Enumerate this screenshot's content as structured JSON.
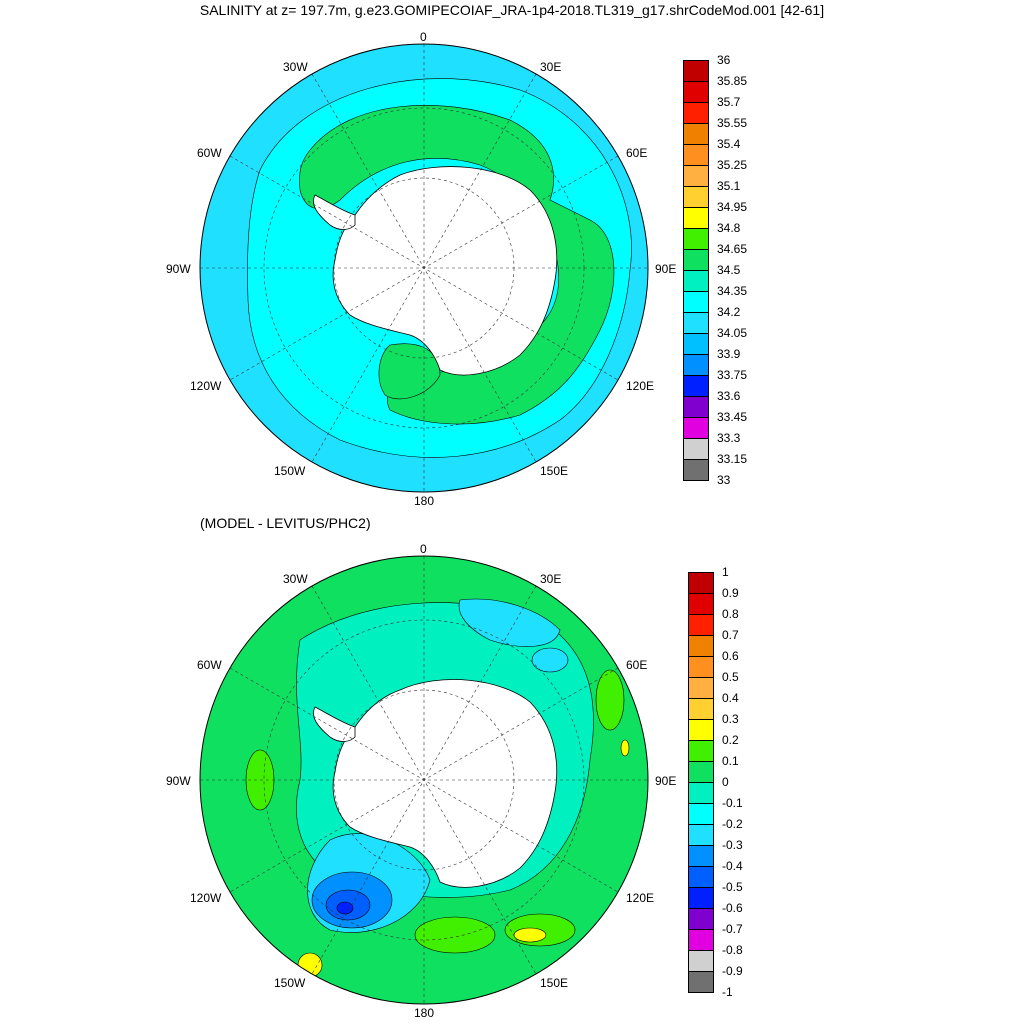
{
  "title": "SALINITY at z= 197.7m, g.e23.GOMIPECOIAF_JRA-1p4-2018.TL319_g17.shrCodeMod.001 [42-61]",
  "subtitle": "(MODEL - LEVITUS/PHC2)",
  "longitude_labels": [
    "0",
    "30E",
    "60E",
    "90E",
    "120E",
    "150E",
    "180",
    "150W",
    "120W",
    "90W",
    "60W",
    "30W"
  ],
  "top_panel": {
    "colorbar_labels": [
      "36",
      "35.85",
      "35.7",
      "35.55",
      "35.4",
      "35.25",
      "35.1",
      "34.95",
      "34.8",
      "34.65",
      "34.5",
      "34.35",
      "34.2",
      "34.05",
      "33.9",
      "33.75",
      "33.6",
      "33.45",
      "33.3",
      "33.15",
      "33"
    ],
    "colorbar_colors": [
      "#c00000",
      "#e00000",
      "#ff2000",
      "#f08000",
      "#ff9020",
      "#ffb040",
      "#ffd030",
      "#ffff00",
      "#40f000",
      "#10e060",
      "#00f0c0",
      "#00ffff",
      "#20e0ff",
      "#00c0ff",
      "#0090ff",
      "#0020ff",
      "#8000d0",
      "#e000e0",
      "#d0d0d0",
      "#707070"
    ],
    "fields": {
      "ocean": "#20e0ff",
      "inner_ring": "#00ffff",
      "acc_band": "#10e060",
      "land": "#ffffff"
    }
  },
  "bottom_panel": {
    "colorbar_labels": [
      "1",
      "0.9",
      "0.8",
      "0.7",
      "0.6",
      "0.5",
      "0.4",
      "0.3",
      "0.2",
      "0.1",
      "0",
      "-0.1",
      "-0.2",
      "-0.3",
      "-0.4",
      "-0.5",
      "-0.6",
      "-0.7",
      "-0.8",
      "-0.9",
      "-1"
    ],
    "colorbar_colors": [
      "#c00000",
      "#e00000",
      "#ff2000",
      "#f08000",
      "#ff9020",
      "#ffb040",
      "#ffd030",
      "#ffff00",
      "#40f000",
      "#10e060",
      "#00f0c0",
      "#00ffff",
      "#20e0ff",
      "#0090ff",
      "#0060ff",
      "#0020ff",
      "#8000d0",
      "#e000e0",
      "#d0d0d0",
      "#707070"
    ],
    "fields": {
      "ocean": "#10e060",
      "coastal": "#00f0c0",
      "negative_patch": "#20e0ff",
      "deep_negative": "#0020ff",
      "positive_patch": "#40f000",
      "hot_patch": "#ffff00",
      "land": "#ffffff"
    }
  }
}
